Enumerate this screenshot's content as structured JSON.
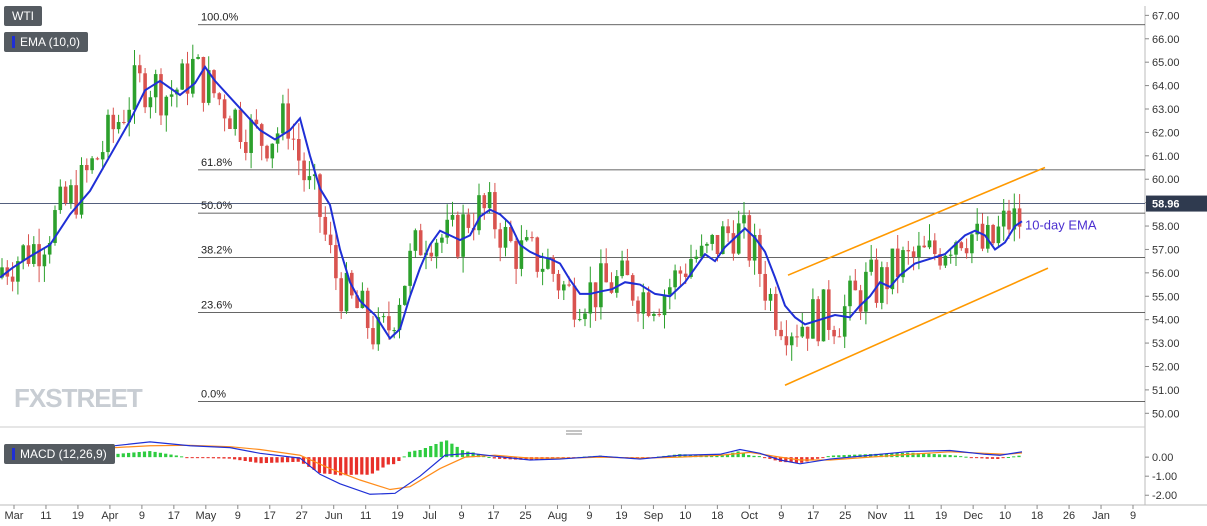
{
  "instrument_label": "WTI",
  "ema_label": "EMA (10,0)",
  "macd_label": "MACD (12,26,9)",
  "watermark": "FXSTREET",
  "last_price": "58.96",
  "colors": {
    "up": "#2ca02c",
    "down": "#d9534f",
    "ema": "#1f2fd6",
    "channel": "#ff9900",
    "macd": "#1f2fd6",
    "signal": "#ff8c1a",
    "hist_up": "#2ecc40",
    "hist_down": "#e8302a"
  },
  "chart_data": [
    {
      "type": "candlestick",
      "title": "WTI",
      "y_ticks": [
        "50.00",
        "51.00",
        "52.00",
        "53.00",
        "54.00",
        "55.00",
        "56.00",
        "57.00",
        "58.00",
        "59.00",
        "60.00",
        "61.00",
        "62.00",
        "63.00",
        "64.00",
        "65.00",
        "66.00",
        "67.00"
      ],
      "ylim": [
        49.5,
        67.4
      ],
      "x_tick_labels": [
        "Mar",
        "11",
        "19",
        "Apr",
        "9",
        "17",
        "May",
        "9",
        "17",
        "27",
        "Jun",
        "11",
        "19",
        "Jul",
        "9",
        "17",
        "25",
        "Aug",
        "9",
        "19",
        "Sep",
        "10",
        "18",
        "Oct",
        "9",
        "17",
        "25",
        "Nov",
        "11",
        "19",
        "Dec",
        "10",
        "18",
        "26",
        "Jan",
        "9"
      ],
      "fibonacci_levels": [
        {
          "label": "100.0%",
          "value": 66.6
        },
        {
          "label": "61.8%",
          "value": 60.4
        },
        {
          "label": "50.0%",
          "value": 58.55
        },
        {
          "label": "38.2%",
          "value": 56.65
        },
        {
          "label": "23.6%",
          "value": 54.3
        },
        {
          "label": "0.0%",
          "value": 50.5
        }
      ],
      "annotation": "10-day EMA",
      "last_price": 58.96,
      "ema_path": [
        [
          0,
          55.8
        ],
        [
          12,
          56.2
        ],
        [
          30,
          56.7
        ],
        [
          50,
          57.2
        ],
        [
          70,
          58.5
        ],
        [
          90,
          59.5
        ],
        [
          110,
          61.0
        ],
        [
          130,
          62.5
        ],
        [
          145,
          63.8
        ],
        [
          160,
          64.2
        ],
        [
          180,
          63.6
        ],
        [
          195,
          64.1
        ],
        [
          205,
          64.8
        ],
        [
          215,
          64.2
        ],
        [
          230,
          63.5
        ],
        [
          245,
          62.8
        ],
        [
          260,
          62.1
        ],
        [
          275,
          61.7
        ],
        [
          290,
          62.1
        ],
        [
          300,
          62.6
        ],
        [
          310,
          61.0
        ],
        [
          320,
          59.6
        ],
        [
          330,
          58.9
        ],
        [
          340,
          57.0
        ],
        [
          350,
          55.6
        ],
        [
          360,
          54.8
        ],
        [
          375,
          54.2
        ],
        [
          390,
          53.2
        ],
        [
          400,
          53.6
        ],
        [
          410,
          55.0
        ],
        [
          420,
          56.2
        ],
        [
          430,
          57.2
        ],
        [
          440,
          57.8
        ],
        [
          450,
          57.6
        ],
        [
          460,
          57.4
        ],
        [
          470,
          57.6
        ],
        [
          480,
          58.4
        ],
        [
          490,
          58.7
        ],
        [
          500,
          58.5
        ],
        [
          510,
          58.1
        ],
        [
          520,
          57.2
        ],
        [
          530,
          56.9
        ],
        [
          540,
          56.7
        ],
        [
          550,
          56.6
        ],
        [
          560,
          56.4
        ],
        [
          570,
          55.7
        ],
        [
          580,
          55.1
        ],
        [
          590,
          55.1
        ],
        [
          600,
          55.2
        ],
        [
          612,
          55.3
        ],
        [
          625,
          55.6
        ],
        [
          640,
          55.5
        ],
        [
          655,
          55.1
        ],
        [
          670,
          55.0
        ],
        [
          685,
          55.6
        ],
        [
          695,
          56.2
        ],
        [
          705,
          56.8
        ],
        [
          715,
          56.5
        ],
        [
          725,
          57.1
        ],
        [
          735,
          57.5
        ],
        [
          745,
          57.9
        ],
        [
          755,
          57.5
        ],
        [
          765,
          56.9
        ],
        [
          775,
          55.8
        ],
        [
          785,
          54.6
        ],
        [
          795,
          54.1
        ],
        [
          805,
          53.8
        ],
        [
          820,
          54.0
        ],
        [
          835,
          54.2
        ],
        [
          850,
          54.1
        ],
        [
          860,
          54.6
        ],
        [
          870,
          55.0
        ],
        [
          880,
          55.6
        ],
        [
          890,
          55.4
        ],
        [
          900,
          55.9
        ],
        [
          915,
          56.4
        ],
        [
          930,
          56.6
        ],
        [
          945,
          56.8
        ],
        [
          955,
          57.2
        ],
        [
          965,
          57.6
        ],
        [
          975,
          57.8
        ],
        [
          985,
          57.6
        ],
        [
          995,
          57.0
        ],
        [
          1005,
          57.3
        ],
        [
          1015,
          58.0
        ],
        [
          1022,
          58.2
        ]
      ],
      "channel_lines": [
        {
          "from": [
            788,
            55.9
          ],
          "to": [
            1045,
            60.5
          ]
        },
        {
          "from": [
            785,
            51.2
          ],
          "to": [
            1048,
            56.2
          ]
        }
      ]
    },
    {
      "type": "macd",
      "title": "MACD (12,26,9)",
      "y_ticks": [
        "-2.00",
        "-1.00",
        "0.00"
      ],
      "ylim": [
        -2.25,
        0.9
      ],
      "macd_line": [
        [
          115,
          0.6
        ],
        [
          150,
          0.8
        ],
        [
          190,
          0.6
        ],
        [
          230,
          0.5
        ],
        [
          260,
          0.2
        ],
        [
          300,
          -0.05
        ],
        [
          320,
          -0.9
        ],
        [
          340,
          -1.4
        ],
        [
          370,
          -1.95
        ],
        [
          395,
          -1.9
        ],
        [
          420,
          -1.0
        ],
        [
          445,
          0.1
        ],
        [
          470,
          0.2
        ],
        [
          495,
          0.05
        ],
        [
          530,
          -0.15
        ],
        [
          560,
          -0.1
        ],
        [
          600,
          0.05
        ],
        [
          640,
          -0.1
        ],
        [
          680,
          0.1
        ],
        [
          720,
          0.15
        ],
        [
          740,
          0.4
        ],
        [
          760,
          0.2
        ],
        [
          780,
          -0.15
        ],
        [
          800,
          -0.35
        ],
        [
          830,
          -0.1
        ],
        [
          870,
          0.1
        ],
        [
          910,
          0.3
        ],
        [
          950,
          0.35
        ],
        [
          985,
          0.15
        ],
        [
          1000,
          0.1
        ],
        [
          1022,
          0.28
        ]
      ],
      "signal_line": [
        [
          115,
          0.5
        ],
        [
          150,
          0.6
        ],
        [
          190,
          0.62
        ],
        [
          230,
          0.55
        ],
        [
          260,
          0.4
        ],
        [
          300,
          0.1
        ],
        [
          330,
          -0.6
        ],
        [
          360,
          -1.2
        ],
        [
          390,
          -1.7
        ],
        [
          410,
          -1.55
        ],
        [
          440,
          -0.6
        ],
        [
          465,
          0.0
        ],
        [
          495,
          0.1
        ],
        [
          530,
          -0.05
        ],
        [
          570,
          -0.05
        ],
        [
          600,
          -0.0
        ],
        [
          640,
          -0.05
        ],
        [
          680,
          0.0
        ],
        [
          720,
          0.1
        ],
        [
          750,
          0.25
        ],
        [
          780,
          0.0
        ],
        [
          800,
          -0.15
        ],
        [
          830,
          -0.15
        ],
        [
          870,
          0.0
        ],
        [
          910,
          0.15
        ],
        [
          950,
          0.28
        ],
        [
          985,
          0.2
        ],
        [
          1005,
          0.15
        ],
        [
          1022,
          0.22
        ]
      ]
    }
  ]
}
